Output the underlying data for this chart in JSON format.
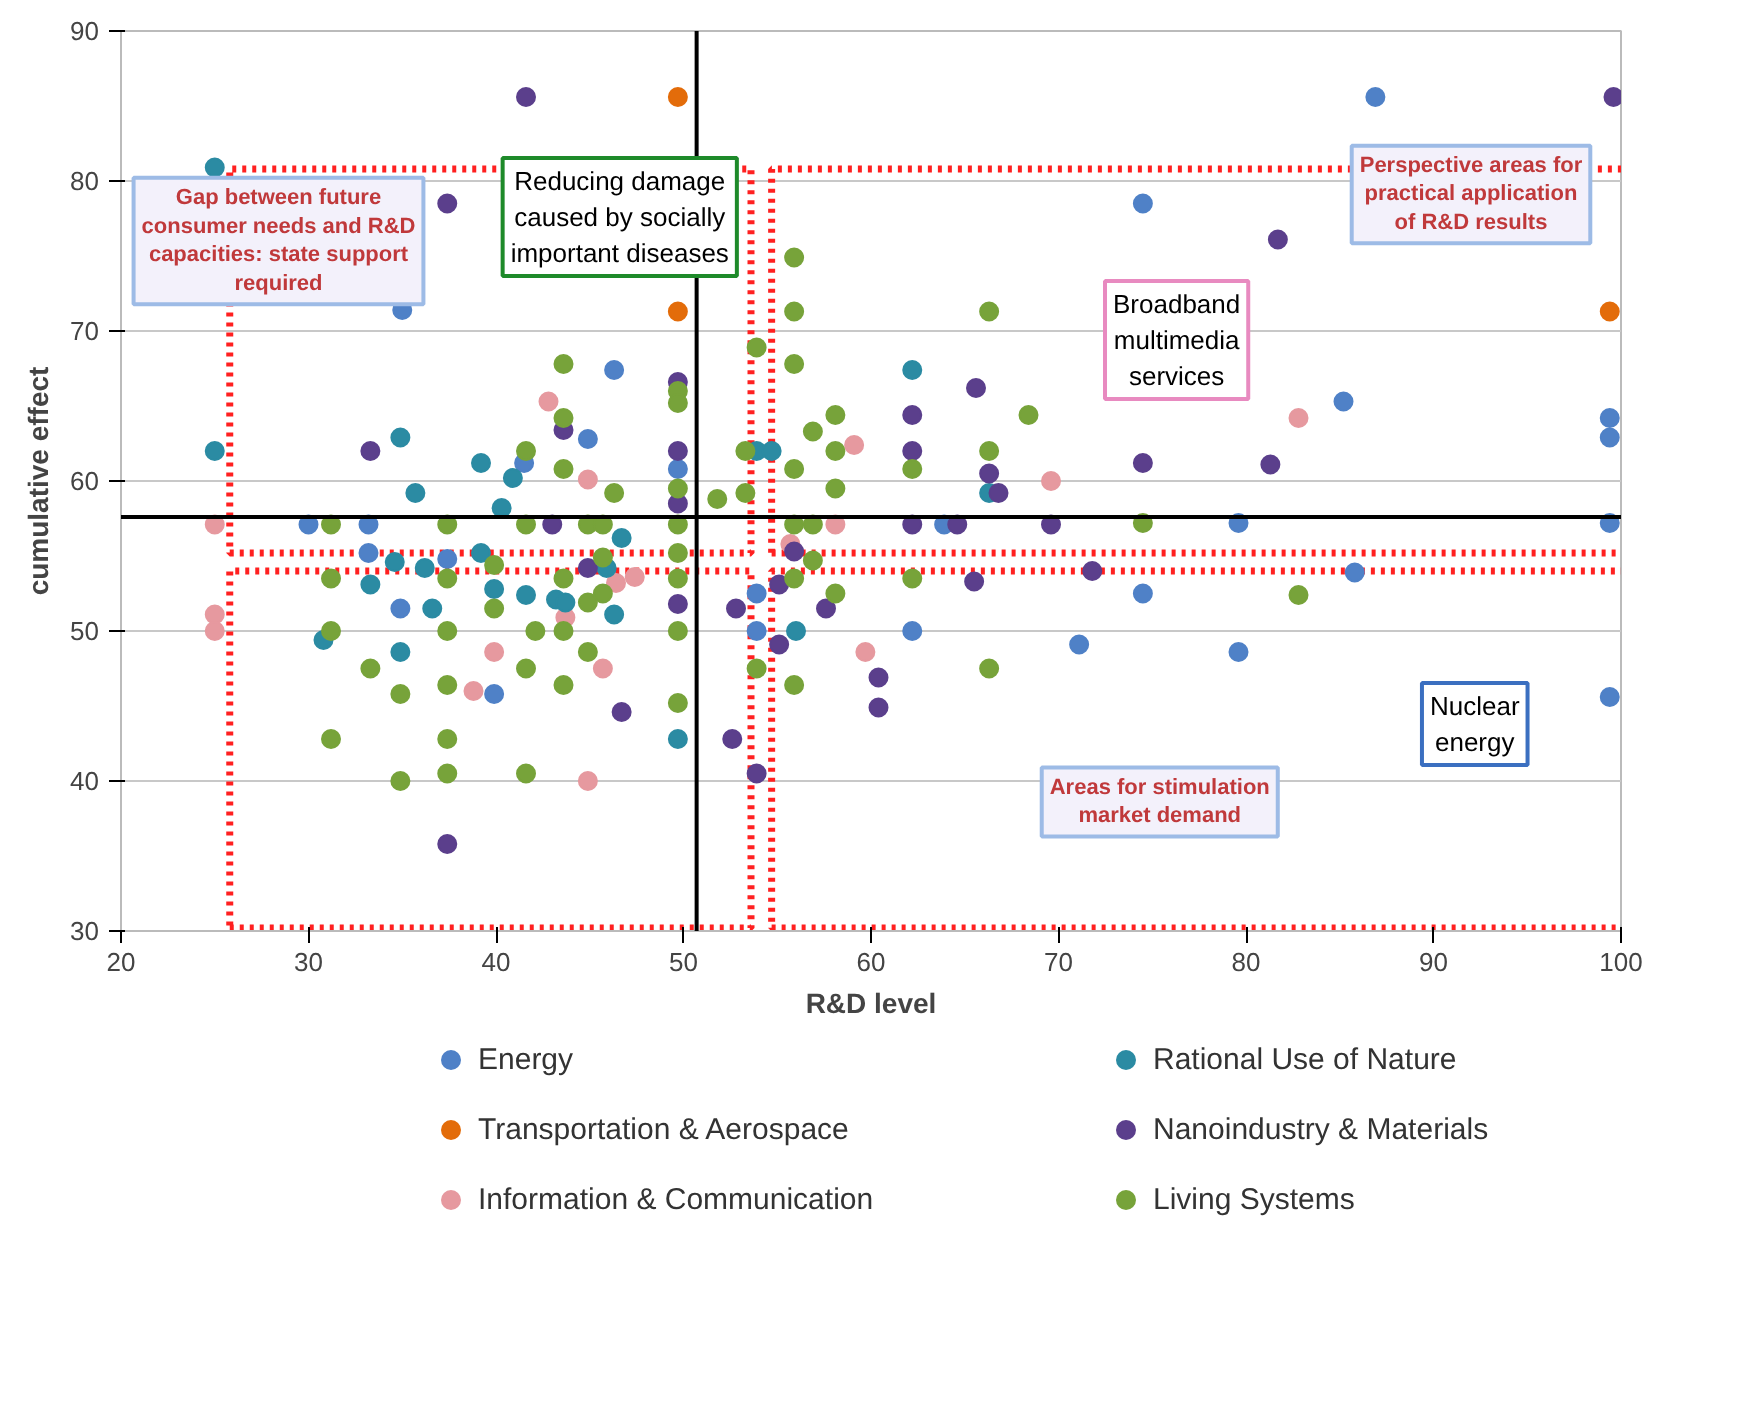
{
  "chart_data": {
    "type": "scatter",
    "xlabel": "R&D level",
    "ylabel": "cumulative effect",
    "xlim": [
      20,
      100
    ],
    "ylim": [
      30,
      90
    ],
    "xticks": [
      20,
      30,
      40,
      50,
      60,
      70,
      80,
      90,
      100
    ],
    "yticks": [
      30,
      40,
      50,
      60,
      70,
      80,
      90
    ],
    "grid": "y",
    "legend": "bottom",
    "marker": "circle",
    "series": [
      {
        "name": "Energy",
        "color": "#4f81c7",
        "x": [
          35.0,
          46.3,
          44.9,
          41.5,
          49.7,
          30.0,
          33.2,
          33.2,
          37.4,
          34.9,
          39.9,
          63.9,
          53.9,
          53.9,
          62.2,
          74.5,
          74.5,
          86.9,
          85.2,
          99.4,
          99.4,
          79.6,
          99.4,
          85.8,
          79.6,
          99.4,
          71.1
        ],
        "values": [
          71.4,
          67.4,
          62.8,
          61.2,
          60.8,
          57.1,
          57.1,
          55.2,
          54.8,
          51.5,
          45.8,
          57.1,
          52.5,
          50.0,
          50.0,
          52.5,
          78.5,
          85.6,
          65.3,
          64.2,
          62.9,
          57.2,
          57.2,
          53.9,
          48.6,
          45.6,
          49.1
        ]
      },
      {
        "name": "Transportation & Aerospace",
        "color": "#e36c0a",
        "x": [
          49.7,
          49.7,
          99.4
        ],
        "values": [
          85.6,
          71.3,
          71.3
        ]
      },
      {
        "name": "Information & Communication",
        "color": "#e6999f",
        "x": [
          42.8,
          44.9,
          25.0,
          25.0,
          25.0,
          47.4,
          46.4,
          43.7,
          39.9,
          38.8,
          45.7,
          44.9,
          59.1,
          69.6,
          58.1,
          55.7,
          59.7,
          82.8
        ],
        "values": [
          65.3,
          60.1,
          57.1,
          51.1,
          50.0,
          53.6,
          53.2,
          50.9,
          48.6,
          46.0,
          47.5,
          40.0,
          62.4,
          60.0,
          57.1,
          55.8,
          48.6,
          64.2
        ]
      },
      {
        "name": "Rational Use of Nature",
        "color": "#2b8ba3",
        "x": [
          25.0,
          25.0,
          34.9,
          39.2,
          40.9,
          35.7,
          40.3,
          46.7,
          39.2,
          34.6,
          36.2,
          45.9,
          33.3,
          39.9,
          41.6,
          36.6,
          43.2,
          43.7,
          46.3,
          30.8,
          34.9,
          49.7,
          62.2,
          53.9,
          54.7,
          66.3,
          56.0
        ],
        "values": [
          80.9,
          62.0,
          62.9,
          61.2,
          60.2,
          59.2,
          58.2,
          56.2,
          55.2,
          54.6,
          54.2,
          54.2,
          53.1,
          52.8,
          52.4,
          51.5,
          52.1,
          51.9,
          51.1,
          49.4,
          48.6,
          42.8,
          67.4,
          62.0,
          62.0,
          59.2,
          50.0
        ]
      },
      {
        "name": "Nanoindustry & Materials",
        "color": "#5b3f8c",
        "x": [
          41.6,
          99.6,
          37.4,
          49.7,
          33.3,
          43.6,
          49.7,
          43.0,
          49.7,
          44.9,
          49.7,
          46.7,
          37.4,
          65.6,
          62.2,
          62.2,
          66.3,
          74.5,
          66.8,
          62.2,
          64.6,
          69.6,
          55.9,
          65.5,
          71.8,
          55.1,
          52.8,
          57.6,
          55.1,
          60.4,
          60.4,
          52.6,
          53.9,
          81.7,
          81.3
        ],
        "values": [
          85.6,
          85.6,
          78.5,
          66.6,
          62.0,
          63.4,
          62.0,
          57.1,
          58.5,
          54.2,
          51.8,
          44.6,
          35.8,
          66.2,
          64.4,
          62.0,
          60.5,
          61.2,
          59.2,
          57.1,
          57.1,
          57.1,
          55.3,
          53.3,
          54.0,
          53.1,
          51.5,
          51.5,
          49.1,
          46.9,
          44.9,
          42.8,
          40.5,
          76.1,
          61.1
        ]
      },
      {
        "name": "Living Systems",
        "color": "#77a33a",
        "x": [
          43.6,
          43.6,
          41.6,
          43.6,
          49.7,
          49.7,
          46.3,
          49.7,
          31.2,
          37.4,
          41.6,
          44.9,
          45.7,
          49.7,
          45.7,
          49.7,
          31.2,
          37.4,
          39.9,
          43.6,
          49.7,
          39.9,
          45.7,
          44.9,
          31.2,
          37.4,
          42.1,
          43.6,
          49.7,
          44.9,
          33.3,
          41.6,
          43.6,
          37.4,
          34.9,
          49.7,
          31.2,
          37.4,
          37.4,
          41.6,
          34.9,
          55.9,
          55.9,
          66.3,
          53.9,
          55.9,
          58.1,
          56.9,
          68.4,
          53.3,
          58.1,
          66.3,
          55.9,
          62.2,
          51.8,
          53.3,
          58.1,
          55.9,
          56.9,
          56.9,
          55.9,
          62.2,
          58.1,
          53.9,
          55.9,
          66.3,
          74.5,
          82.8
        ],
        "values": [
          67.8,
          64.2,
          62.0,
          60.8,
          66.0,
          65.2,
          59.2,
          59.5,
          57.1,
          57.1,
          57.1,
          57.1,
          57.1,
          57.1,
          54.9,
          55.2,
          53.5,
          53.5,
          54.4,
          53.5,
          53.5,
          51.5,
          52.5,
          51.9,
          50.0,
          50.0,
          50.0,
          50.0,
          50.0,
          48.6,
          47.5,
          47.5,
          46.4,
          46.4,
          45.8,
          45.2,
          42.8,
          42.8,
          40.5,
          40.5,
          40.0,
          74.9,
          71.3,
          71.3,
          68.9,
          67.8,
          64.4,
          63.3,
          64.4,
          62.0,
          62.0,
          62.0,
          60.8,
          60.8,
          58.8,
          59.2,
          59.5,
          57.1,
          57.1,
          54.7,
          53.5,
          53.5,
          52.5,
          47.5,
          46.4,
          47.5,
          57.2,
          52.4
        ]
      }
    ],
    "ref_lines": [
      {
        "axis": "x",
        "value": 50.7,
        "color": "#000000",
        "line_style": "solid"
      },
      {
        "axis": "y",
        "value": 57.6,
        "color": "#000000",
        "line_style": "solid"
      }
    ],
    "annotations": [
      "Gap between future\nconsumer needs and R&D\ncapacities: state support\nrequired",
      "Reducing damage\ncaused by socially\nimportant diseases",
      "Broadband\nmultimedia\nservices",
      "Perspective areas for\npractical application\nof R&D results",
      "Nuclear\nenergy",
      "Areas for stimulation\nmarket demand"
    ]
  }
}
